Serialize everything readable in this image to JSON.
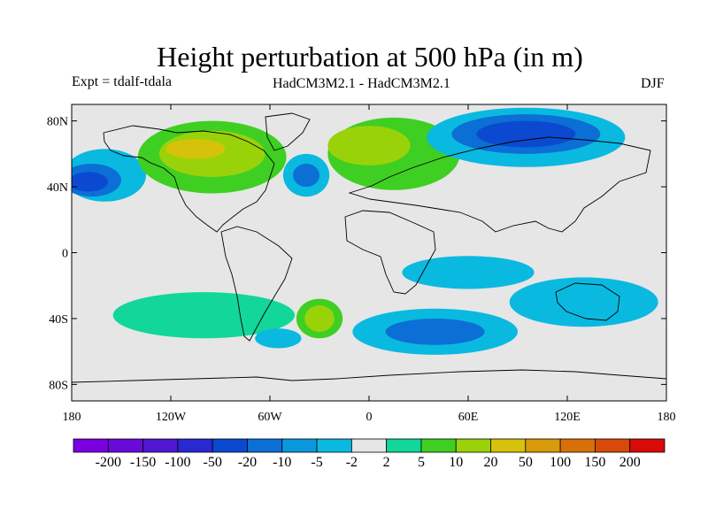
{
  "title": "Height perturbation at 500 hPa (in m)",
  "left_label": "Expt = tdalf-tdala",
  "center_label": "HadCM3M2.1 - HadCM3M2.1",
  "right_label": "DJF",
  "lat_ticks": [
    {
      "lat": 80,
      "label": "80N"
    },
    {
      "lat": 40,
      "label": "40N"
    },
    {
      "lat": 0,
      "label": "0"
    },
    {
      "lat": -40,
      "label": "40S"
    },
    {
      "lat": -80,
      "label": "80S"
    }
  ],
  "lon_ticks": [
    {
      "lon": -180,
      "label": "180"
    },
    {
      "lon": -120,
      "label": "120W"
    },
    {
      "lon": -60,
      "label": "60W"
    },
    {
      "lon": 0,
      "label": "0"
    },
    {
      "lon": 60,
      "label": "60E"
    },
    {
      "lon": 120,
      "label": "120E"
    },
    {
      "lon": 180,
      "label": "180"
    }
  ],
  "colorbar": {
    "colors": [
      "#7b00e0",
      "#6a0ad8",
      "#5018d0",
      "#2a28d0",
      "#0b4ad0",
      "#0b6fd6",
      "#0a98dc",
      "#0ab9e0",
      "#e6e6e6",
      "#12d69a",
      "#3fcf22",
      "#9ad20a",
      "#d6c20a",
      "#d89a0a",
      "#d8700a",
      "#d84a0a",
      "#d80a0a"
    ],
    "labels": [
      "-200",
      "-150",
      "-100",
      "-50",
      "-20",
      "-10",
      "-5",
      "-2",
      "2",
      "5",
      "10",
      "20",
      "50",
      "100",
      "150",
      "200"
    ]
  },
  "map": {
    "background_color": "#e6e6e6",
    "anomaly_blobs": [
      {
        "name": "arctic-pacific-negative",
        "lon": -160,
        "lat": 47,
        "rlon": 25,
        "rlat": 16,
        "color": "#0ab9e0"
      },
      {
        "name": "arctic-pacific-negative-core",
        "lon": -168,
        "lat": 44,
        "rlon": 18,
        "rlat": 10,
        "color": "#0b6fd6"
      },
      {
        "name": "arctic-pacific-negative-center",
        "lon": -170,
        "lat": 43,
        "rlon": 12,
        "rlat": 6,
        "color": "#0b4ad0"
      },
      {
        "name": "north-america-positive",
        "lon": -95,
        "lat": 58,
        "rlon": 45,
        "rlat": 22,
        "color": "#3fcf22"
      },
      {
        "name": "north-america-positive-core",
        "lon": -95,
        "lat": 60,
        "rlon": 32,
        "rlat": 14,
        "color": "#9ad20a"
      },
      {
        "name": "north-america-positive-center",
        "lon": -105,
        "lat": 63,
        "rlon": 18,
        "rlat": 6,
        "color": "#d6c20a"
      },
      {
        "name": "north-atlantic-low",
        "lon": -38,
        "lat": 47,
        "rlon": 14,
        "rlat": 13,
        "color": "#0ab9e0"
      },
      {
        "name": "north-atlantic-low-core",
        "lon": -38,
        "lat": 47,
        "rlon": 8,
        "rlat": 7,
        "color": "#0b6fd6"
      },
      {
        "name": "eurasia-positive",
        "lon": 15,
        "lat": 60,
        "rlon": 40,
        "rlat": 22,
        "color": "#3fcf22"
      },
      {
        "name": "eurasia-positive-core",
        "lon": 0,
        "lat": 65,
        "rlon": 25,
        "rlat": 12,
        "color": "#9ad20a"
      },
      {
        "name": "siberia-negative",
        "lon": 95,
        "lat": 70,
        "rlon": 60,
        "rlat": 18,
        "color": "#0ab9e0"
      },
      {
        "name": "siberia-negative-mid",
        "lon": 95,
        "lat": 72,
        "rlon": 45,
        "rlat": 12,
        "color": "#0b6fd6"
      },
      {
        "name": "siberia-negative-core",
        "lon": 95,
        "lat": 72,
        "rlon": 30,
        "rlat": 8,
        "color": "#0b4ad0"
      },
      {
        "name": "south-pacific-positive",
        "lon": -100,
        "lat": -38,
        "rlon": 55,
        "rlat": 14,
        "color": "#12d69a"
      },
      {
        "name": "south-atlantic-positive",
        "lon": -30,
        "lat": -40,
        "rlon": 14,
        "rlat": 12,
        "color": "#3fcf22"
      },
      {
        "name": "south-atlantic-positive-core",
        "lon": -30,
        "lat": -40,
        "rlon": 9,
        "rlat": 8,
        "color": "#9ad20a"
      },
      {
        "name": "indian-ocean-negative",
        "lon": 40,
        "lat": -48,
        "rlon": 50,
        "rlat": 14,
        "color": "#0ab9e0"
      },
      {
        "name": "indian-ocean-negative-core",
        "lon": 40,
        "lat": -48,
        "rlon": 30,
        "rlat": 8,
        "color": "#0b6fd6"
      },
      {
        "name": "australia-negative",
        "lon": 130,
        "lat": -30,
        "rlon": 45,
        "rlat": 15,
        "color": "#0ab9e0"
      },
      {
        "name": "southern-ocean-negative",
        "lon": -55,
        "lat": -52,
        "rlon": 14,
        "rlat": 6,
        "color": "#0ab9e0"
      },
      {
        "name": "tropical-pacific-negative",
        "lon": 60,
        "lat": -12,
        "rlon": 40,
        "rlat": 10,
        "color": "#0ab9e0"
      }
    ],
    "coastline_color": "#000000"
  }
}
